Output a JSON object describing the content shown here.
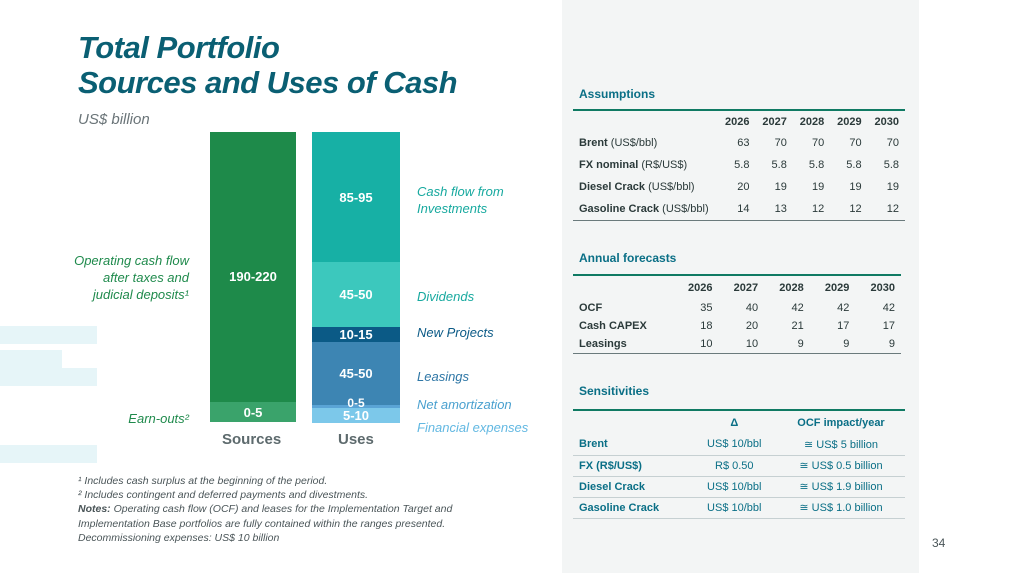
{
  "title": {
    "line1": "Total Portfolio",
    "line2": "Sources and Uses of Cash"
  },
  "subtitle": "US$ billion",
  "colors": {
    "dark_green": "#1e8a4a",
    "teal_dark": "#17b0a5",
    "teal_light": "#3cc8bd",
    "navy": "#0b5a86",
    "steel": "#3d85b3",
    "sky": "#7cc8ea",
    "light_green": "#3aa36b"
  },
  "chart_data": {
    "type": "bar",
    "title": "Total Portfolio Sources and Uses of Cash",
    "ylabel": "US$ billion",
    "categories": [
      "Sources",
      "Uses"
    ],
    "sources": [
      {
        "name": "Operating cash flow after taxes and judicial deposits¹",
        "value": "190-220"
      },
      {
        "name": "Earn-outs²",
        "value": "0-5"
      }
    ],
    "uses": [
      {
        "name": "Cash flow from Investments",
        "value": "85-95"
      },
      {
        "name": "Dividends",
        "value": "45-50"
      },
      {
        "name": "New Projects",
        "value": "10-15"
      },
      {
        "name": "Leasings",
        "value": "45-50"
      },
      {
        "name": "Net amortization",
        "value": "0-5"
      },
      {
        "name": "Financial expenses",
        "value": "5-10"
      }
    ]
  },
  "labels": {
    "ocf_line1": "Operating cash flow",
    "ocf_line2": "after taxes and",
    "ocf_line3": "judicial deposits¹",
    "earnouts": "Earn-outs²",
    "cfi_line1": "Cash flow from",
    "cfi_line2": "Investments",
    "dividends": "Dividends",
    "new_projects": "New Projects",
    "leasings": "Leasings",
    "net_amortization": "Net amortization",
    "financial_expenses": "Financial expenses"
  },
  "notes": {
    "n1": "¹ Includes cash surplus at the beginning of the period.",
    "n2": "² Includes contingent and deferred payments and divestments.",
    "notes_label": "Notes:",
    "notes_text": " Operating cash flow (OCF) and leases for the Implementation Target and Implementation Base portfolios are fully contained within the ranges presented.",
    "decom": "Decommissioning expenses: US$ 10 billion"
  },
  "assumptions": {
    "title": "Assumptions",
    "years": [
      "2026",
      "2027",
      "2028",
      "2029",
      "2030"
    ],
    "rows": [
      {
        "name": "Brent",
        "unit": " (US$/bbl)",
        "values": [
          "63",
          "70",
          "70",
          "70",
          "70"
        ]
      },
      {
        "name": "FX nominal",
        "unit": " (R$/US$)",
        "values": [
          "5.8",
          "5.8",
          "5.8",
          "5.8",
          "5.8"
        ]
      },
      {
        "name": "Diesel Crack",
        "unit": "  (US$/bbl)",
        "values": [
          "20",
          "19",
          "19",
          "19",
          "19"
        ]
      },
      {
        "name": "Gasoline Crack",
        "unit": " (US$/bbl)",
        "values": [
          "14",
          "13",
          "12",
          "12",
          "12"
        ]
      }
    ]
  },
  "forecasts": {
    "title": "Annual forecasts",
    "years": [
      "2026",
      "2027",
      "2028",
      "2029",
      "2030"
    ],
    "rows": [
      {
        "name": "OCF",
        "values": [
          "35",
          "40",
          "42",
          "42",
          "42"
        ]
      },
      {
        "name": "Cash CAPEX",
        "values": [
          "18",
          "20",
          "21",
          "17",
          "17"
        ]
      },
      {
        "name": "Leasings",
        "values": [
          "10",
          "10",
          "9",
          "9",
          "9"
        ]
      }
    ]
  },
  "sensitivities": {
    "title": "Sensitivities",
    "col_delta": "Δ",
    "col_impact": "OCF impact/year",
    "rows": [
      {
        "name": "Brent",
        "delta": "US$ 10/bbl",
        "impact": "≅ US$ 5 billion"
      },
      {
        "name": "FX (R$/US$)",
        "delta": "R$ 0.50",
        "impact": "≅ US$ 0.5 billion"
      },
      {
        "name": "Diesel Crack",
        "delta": "US$ 10/bbl",
        "impact": "≅ US$ 1.9 billion"
      },
      {
        "name": "Gasoline Crack",
        "delta": "US$ 10/bbl",
        "impact": "≅ US$ 1.0 billion"
      }
    ]
  },
  "page_number": "34"
}
